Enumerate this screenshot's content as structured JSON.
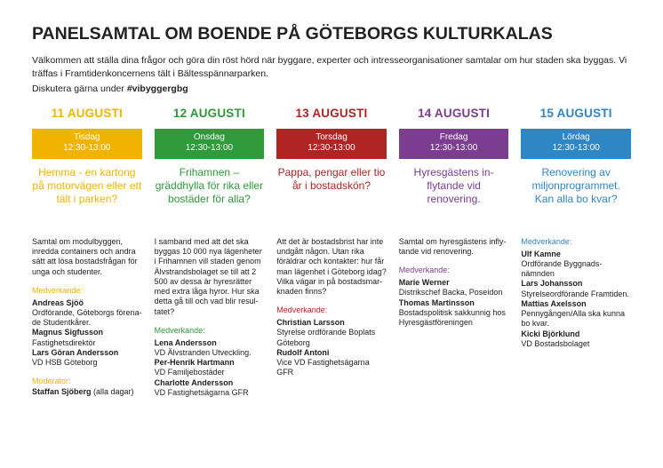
{
  "title": "PANELSAMTAL OM BOENDE PÅ GÖTEBORGS KULTURKALAS",
  "intro": "Välkommen att ställa dina frågor och göra din röst hörd när byggare, experter och intresseorganisationer samtalar om hur staden ska byggas. Vi träffas i Framtidenkoncernens tält i Bältesspännarparken.",
  "hashtag_pre": "Diskutera gärna under ",
  "hashtag": "#vibyggergbg",
  "colors": {
    "c1": "#f0b400",
    "c2": "#2e9a3a",
    "c3": "#b02424",
    "c4": "#7a3d8f",
    "c5": "#2f86c5"
  },
  "days": [
    {
      "date": "11 AUGUSTI",
      "weekday": "Tisdag",
      "time": "12:30-13:00",
      "topic": "Hemma - en kar­tong på motorvä­gen eller ett tält i parken?",
      "desc": "Samtal om modulbyggen, inredda containers och andra sätt att lösa bostadsfrågan för unga och studenter.",
      "medv_label": "Medverkande:",
      "people": [
        {
          "name": "Andreas Sjöö",
          "role": "Ordförande, Göteborgs förena­de Studentkårer."
        },
        {
          "name": "Magnus Sigfusson",
          "role": "Fastighetsdirektör"
        },
        {
          "name": "Lars Göran Andersson",
          "role": "VD HSB Göteborg"
        }
      ],
      "mod_label": "Moderator:",
      "mod_name": "Staffan Sjöberg",
      "mod_suffix": " (alla dagar)"
    },
    {
      "date": "12 AUGUSTI",
      "weekday": "Onsdag",
      "time": "12:30-13:00",
      "topic": "Frihamnen – gräddhylla för rika eller bostäder för alla?",
      "desc": "I samband med att det ska byggas 10 000 nya lägenheter i Frihamnen vill staden genom Älvstrandsbolaget se till att 2 500 av dessa är hyresrätter med extra låga hyror. Hur ska detta gå till och vad blir resul­tatet?",
      "medv_label": "Medverkande:",
      "people": [
        {
          "name": "Lena Andersson",
          "role": "VD Älvstranden Utveckling."
        },
        {
          "name": "Per-Henrik Hartmann",
          "role": "VD Familjebostäder"
        },
        {
          "name": "Charlotte Andersson",
          "role": "VD Fastighetsägarna GFR"
        }
      ]
    },
    {
      "date": "13 AUGUSTI",
      "weekday": "Torsdag",
      "time": "12:30-13:00",
      "topic": "Pappa, pengar eller tio år i bostadskön?",
      "desc": "Att det är bostadsbrist har inte undgått någon. Utan rika föräldrar och kontakter: hur får man lägenhet i Göteborg idag? Vilka vägar in på bostadsmar­knaden finns?",
      "medv_label": "Medverkande:",
      "people": [
        {
          "name": "Christian Larsson",
          "role": "Styrelse ordförande Boplats Göteborg"
        },
        {
          "name": "Rudolf Antoni",
          "role": "Vice VD Fastighetsägarna GFR"
        }
      ]
    },
    {
      "date": "14 AUGUSTI",
      "weekday": "Fredag",
      "time": "12:30-13:00",
      "topic": "Hyresgästens in­flytande vid renovering.",
      "desc": "Samtal om hyresgästens infly­tande vid renovering.",
      "medv_label": "Medverkande:",
      "people": [
        {
          "name": "Marie Werner",
          "role": "Distrikschef Backa, Poseidon"
        },
        {
          "name": "Thomas Martinsson",
          "role": "Bostadspolitisk sakkunnig hos Hyresgästföreningen"
        }
      ]
    },
    {
      "date": "15 AUGUSTI",
      "weekday": "Lördag",
      "time": "12:30-13:00",
      "topic": "Renovering av miljonprogram­met. Kan alla bo kvar?",
      "desc": "",
      "medv_label": "Medverkande:",
      "people": [
        {
          "name": "Ulf Kamne",
          "role": "Ordförande Byggnads­nämnden"
        },
        {
          "name": "Lars Johansson",
          "role": "Styrelseordförande Framtiden."
        },
        {
          "name": "Mattias Axelsson",
          "role": "Pennygången/Alla ska kunna bo kvar."
        },
        {
          "name": "Kicki Björklund",
          "role": "VD Bostadsbolaget"
        }
      ]
    }
  ]
}
